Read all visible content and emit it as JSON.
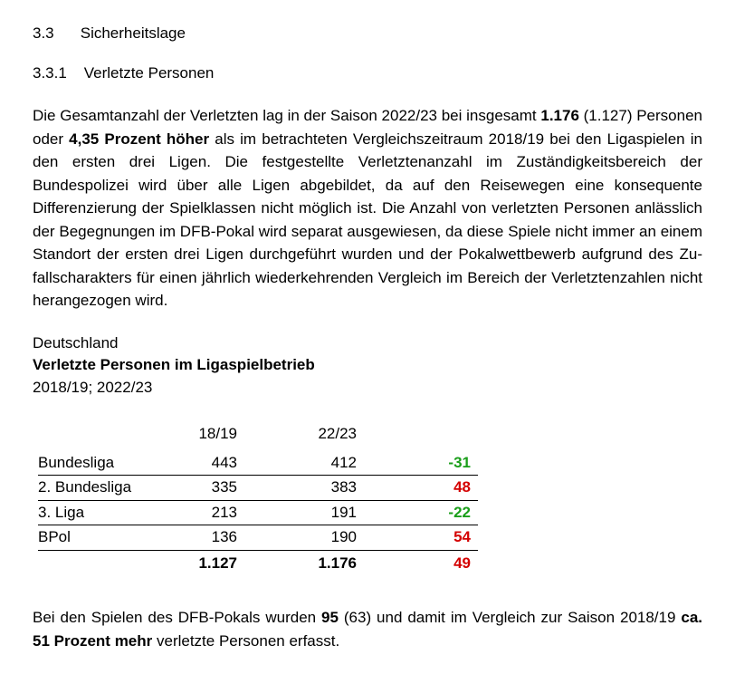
{
  "section": {
    "num": "3.3",
    "title": "Sicherheitslage"
  },
  "subsection": {
    "num": "3.3.1",
    "title": "Verletzte Personen"
  },
  "para1": {
    "t1": "Die Gesamtanzahl der Verletzten lag in der Saison 2022/23 bei insgesamt ",
    "b1": "1.176",
    "t2": " (1.127) Personen oder ",
    "b2": "4,35 Prozent höher",
    "t3": " als im betrachteten Vergleichszeitraum 2018/19 bei den Ligaspielen in den ersten drei Ligen. Die festgestellte Verletztenanzahl im Zuständigkeitsbereich der Bundespolizei wird über alle Ligen ab­gebildet, da auf den Reisewegen eine konsequente Differenzierung der Spielklassen nicht möglich ist. Die Anzahl von verletzten Personen anlässlich der Begegnungen im DFB-Pokal wird separat ausgewiesen, da diese Spiele nicht immer an einem Standort der ersten drei Ligen durchgeführt wurden und der Pokalwettbewerb aufgrund des Zu­fallscharakters für einen jährlich wiederkehrenden Vergleich im Bereich der Verletz­tenzahlen nicht herangezogen wird."
  },
  "chart": {
    "region": "Deutschland",
    "title": "Verletzte Personen im Ligaspielbetrieb",
    "period": "2018/19; 2022/23",
    "headers": {
      "c1": "18/19",
      "c2": "22/23"
    },
    "rows": [
      {
        "label": "Bundesliga",
        "c1": "443",
        "c2": "412",
        "diff": "-31",
        "diff_class": "neg"
      },
      {
        "label": "2. Bundesliga",
        "c1": "335",
        "c2": "383",
        "diff": "48",
        "diff_class": "pos"
      },
      {
        "label": "3. Liga",
        "c1": "213",
        "c2": "191",
        "diff": "-22",
        "diff_class": "neg"
      },
      {
        "label": "BPol",
        "c1": "136",
        "c2": "190",
        "diff": "54",
        "diff_class": "pos"
      }
    ],
    "total": {
      "c1": "1.127",
      "c2": "1.176",
      "diff": "49",
      "diff_class": "pos"
    },
    "colors": {
      "neg": "#1a9e1a",
      "pos": "#d40000",
      "text": "#000000",
      "bg": "#ffffff"
    }
  },
  "para2": {
    "t1": "Bei den Spielen des DFB-Pokals wurden ",
    "b1": "95",
    "t2": " (63) und damit im Vergleich zur Saison 2018/19 ",
    "b2": "ca. 51 Prozent mehr",
    "t3": " verletzte Personen erfasst."
  }
}
